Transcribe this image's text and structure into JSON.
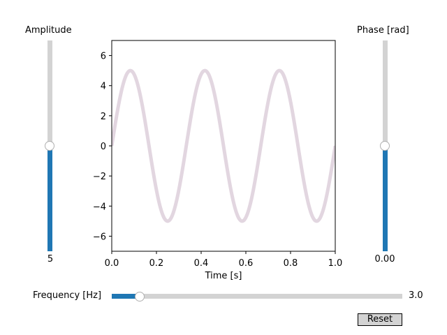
{
  "amplitude_slider": {
    "label": "Amplitude",
    "value_text": "5",
    "min": 0,
    "max": 10,
    "value": 5
  },
  "phase_slider": {
    "label": "Phase [rad]",
    "value_text": "0.00",
    "min": -3.1416,
    "max": 3.1416,
    "value": 0.0
  },
  "frequency_slider": {
    "label": "Frequency [Hz]",
    "value_text": "3.0",
    "min": 0.1,
    "max": 30,
    "value": 3.0
  },
  "reset_button": {
    "label": "Reset"
  },
  "colors": {
    "slider_fill": "#1f77b4",
    "slider_track": "#d3d3d3",
    "curve": "#e2d6e0",
    "knob_border": "#b0b0b0"
  },
  "chart_data": {
    "type": "line",
    "title": "",
    "xlabel": "Time [s]",
    "ylabel": "",
    "xlim": [
      0.0,
      1.0
    ],
    "ylim": [
      -7,
      7
    ],
    "xticks": [
      0.0,
      0.2,
      0.4,
      0.6,
      0.8,
      1.0
    ],
    "xtick_labels": [
      "0.0",
      "0.2",
      "0.4",
      "0.6",
      "0.8",
      "1.0"
    ],
    "yticks": [
      -6,
      -4,
      -2,
      0,
      2,
      4,
      6
    ],
    "ytick_labels": [
      "−6",
      "−4",
      "−2",
      "0",
      "2",
      "4",
      "6"
    ],
    "grid": false,
    "series": [
      {
        "function": "amplitude * sin(2 * pi * frequency * t + phase)",
        "amplitude": 5,
        "frequency": 3.0,
        "phase": 0.0,
        "t_range": [
          0.0,
          1.0
        ]
      }
    ]
  }
}
